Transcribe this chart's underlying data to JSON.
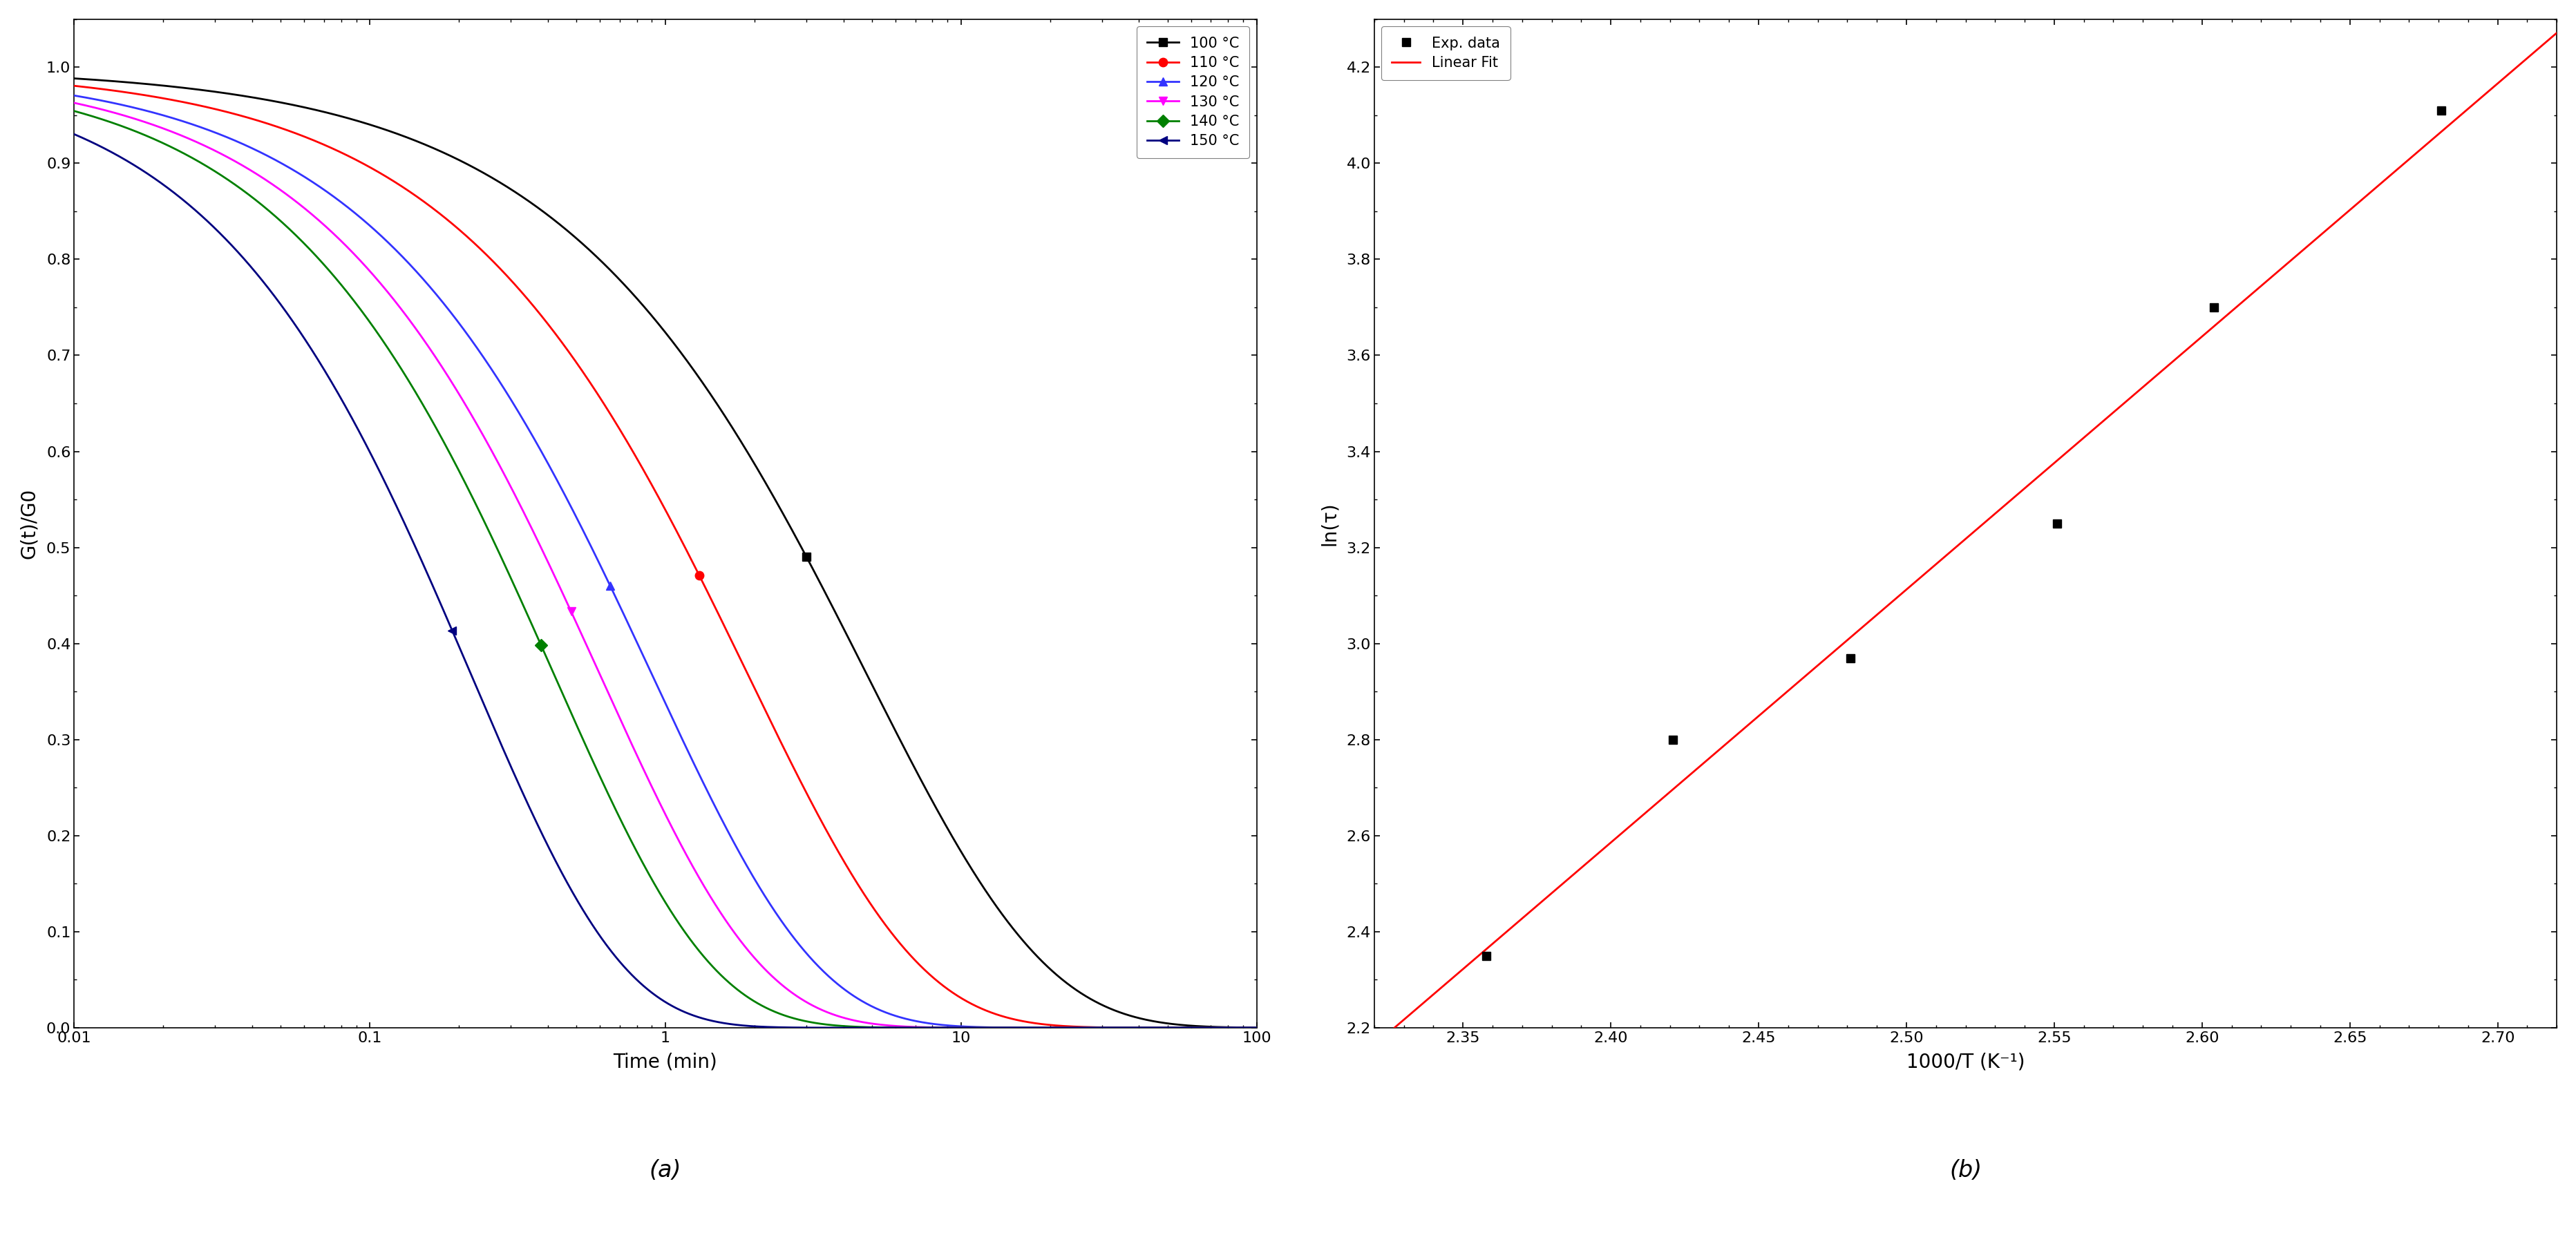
{
  "panel_a": {
    "title": "(a)",
    "xlabel": "Time (min)",
    "ylabel": "G(t)/G0",
    "xlim": [
      0.01,
      100
    ],
    "ylim": [
      0.0,
      1.05
    ],
    "yticks": [
      0.0,
      0.1,
      0.2,
      0.3,
      0.4,
      0.5,
      0.6,
      0.7,
      0.8,
      0.9,
      1.0
    ],
    "curves": [
      {
        "label": "100 °C",
        "color": "#000000",
        "marker": "s",
        "marker_size": 9,
        "tau": 4.8,
        "beta": 0.72,
        "marker_t": 3.0
      },
      {
        "label": "110 °C",
        "color": "#ff0000",
        "marker": "o",
        "marker_size": 9,
        "tau": 1.9,
        "beta": 0.75,
        "marker_t": 1.3
      },
      {
        "label": "120 °C",
        "color": "#3333ff",
        "marker": "^",
        "marker_size": 9,
        "tau": 0.9,
        "beta": 0.78,
        "marker_t": 0.65
      },
      {
        "label": "130 °C",
        "color": "#ff00ff",
        "marker": "v",
        "marker_size": 9,
        "tau": 0.6,
        "beta": 0.8,
        "marker_t": 0.48
      },
      {
        "label": "140 °C",
        "color": "#008000",
        "marker": "D",
        "marker_size": 9,
        "tau": 0.42,
        "beta": 0.82,
        "marker_t": 0.38
      },
      {
        "label": "150 °C",
        "color": "#000080",
        "marker": "<",
        "marker_size": 9,
        "tau": 0.22,
        "beta": 0.85,
        "marker_t": 0.19
      }
    ]
  },
  "panel_b": {
    "title": "(b)",
    "xlabel": "1000/T (K⁻¹)",
    "ylabel": "ln(τ)",
    "xlim": [
      2.32,
      2.72
    ],
    "ylim": [
      2.2,
      4.3
    ],
    "exp_x": [
      2.358,
      2.421,
      2.481,
      2.551,
      2.604,
      2.681
    ],
    "exp_y": [
      2.35,
      2.8,
      2.97,
      3.25,
      3.7,
      4.11
    ],
    "fit_x_start": 2.32,
    "fit_x_end": 2.72,
    "legend_exp": "Exp. data",
    "legend_fit": "Linear Fit",
    "fit_color": "#ff0000",
    "exp_color": "#000000",
    "marker": "s",
    "marker_size": 9
  }
}
